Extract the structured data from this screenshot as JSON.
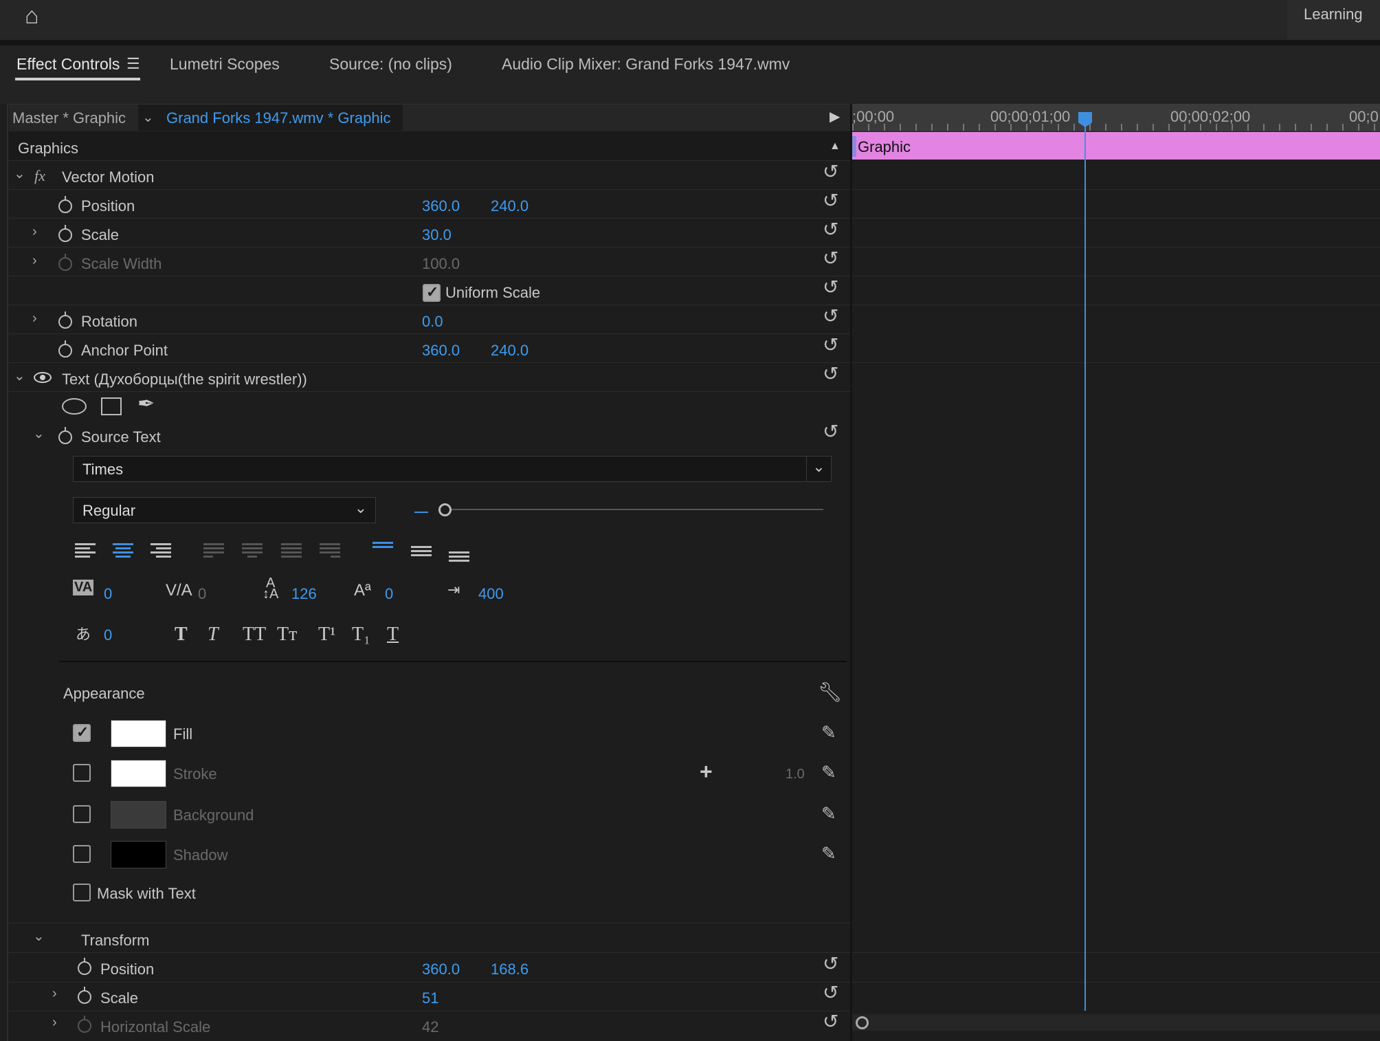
{
  "topbar": {
    "learning": "Learning"
  },
  "tabs": [
    {
      "label": "Effect Controls",
      "active": true
    },
    {
      "label": "Lumetri Scopes"
    },
    {
      "label": "Source: (no clips)"
    },
    {
      "label": "Audio Clip Mixer: Grand Forks 1947.wmv"
    }
  ],
  "header": {
    "master": "Master * Graphic",
    "clip": "Grand Forks 1947.wmv * Graphic"
  },
  "section": "Graphics",
  "vector_motion": {
    "label": "Vector Motion",
    "fx": "fx",
    "position": {
      "label": "Position",
      "x": "360.0",
      "y": "240.0"
    },
    "scale": {
      "label": "Scale",
      "value": "30.0"
    },
    "scale_width": {
      "label": "Scale Width",
      "value": "100.0"
    },
    "uniform_scale": {
      "label": "Uniform Scale",
      "checked": true
    },
    "rotation": {
      "label": "Rotation",
      "value": "0.0"
    },
    "anchor": {
      "label": "Anchor Point",
      "x": "360.0",
      "y": "240.0"
    }
  },
  "text_layer": {
    "label": "Text (Духоборцы(the spirit wrestler))",
    "source_text": "Source Text",
    "font": "Times",
    "style": "Regular",
    "size_slider": 0,
    "tracking": "0",
    "kerning": "0",
    "leading": "126",
    "baseline": "0",
    "tab_width": "400",
    "tsume": "0",
    "styles": [
      "T",
      "T",
      "TT",
      "Tт",
      "T¹",
      "T₁",
      "T"
    ]
  },
  "appearance": {
    "label": "Appearance",
    "fill": {
      "label": "Fill",
      "checked": true,
      "color": "#ffffff"
    },
    "stroke": {
      "label": "Stroke",
      "checked": false,
      "color": "#ffffff",
      "width": "1.0"
    },
    "background": {
      "label": "Background",
      "checked": false,
      "color": "#3a3a3a"
    },
    "shadow": {
      "label": "Shadow",
      "checked": false,
      "color": "#000000"
    },
    "mask": {
      "label": "Mask with Text",
      "checked": false
    }
  },
  "transform": {
    "label": "Transform",
    "position": {
      "label": "Position",
      "x": "360.0",
      "y": "168.6"
    },
    "scale": {
      "label": "Scale",
      "value": "51"
    },
    "hscale": {
      "label": "Horizontal Scale",
      "value": "42"
    }
  },
  "timeline": {
    "ticks": [
      ";00;00",
      "00;00;01;00",
      "00;00;02;00",
      "00;0"
    ],
    "clip": "Graphic",
    "clip_color": "#e384e2",
    "playhead_color": "#3f8fe0"
  }
}
